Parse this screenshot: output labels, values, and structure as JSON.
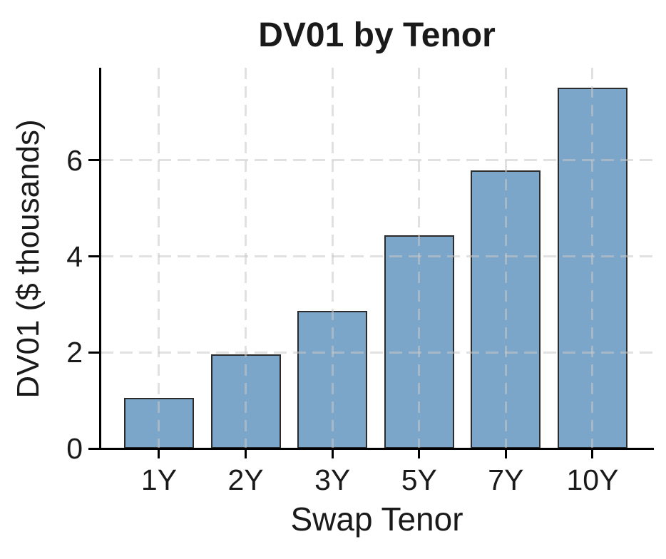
{
  "chart_data": {
    "type": "bar",
    "title": "DV01 by Tenor",
    "xlabel": "Swap Tenor",
    "ylabel": "DV01 ($ thousands)",
    "categories": [
      "1Y",
      "2Y",
      "3Y",
      "5Y",
      "7Y",
      "10Y"
    ],
    "values": [
      1.05,
      1.96,
      2.86,
      4.44,
      5.79,
      7.52
    ],
    "yticks": [
      0,
      2,
      4,
      6
    ],
    "ylim": [
      0,
      7.93
    ],
    "grid": {
      "style": "dashed",
      "axes": "both",
      "drawn_over_bars": true,
      "color": "#c8c8c8"
    },
    "legend": "none",
    "background_color": "#ffffff",
    "bar_fill_color": "#7ca6c9",
    "bar_edge_color": "#2b2b2b",
    "axis_color": "#000000",
    "text_color": "#1a1a1a"
  }
}
